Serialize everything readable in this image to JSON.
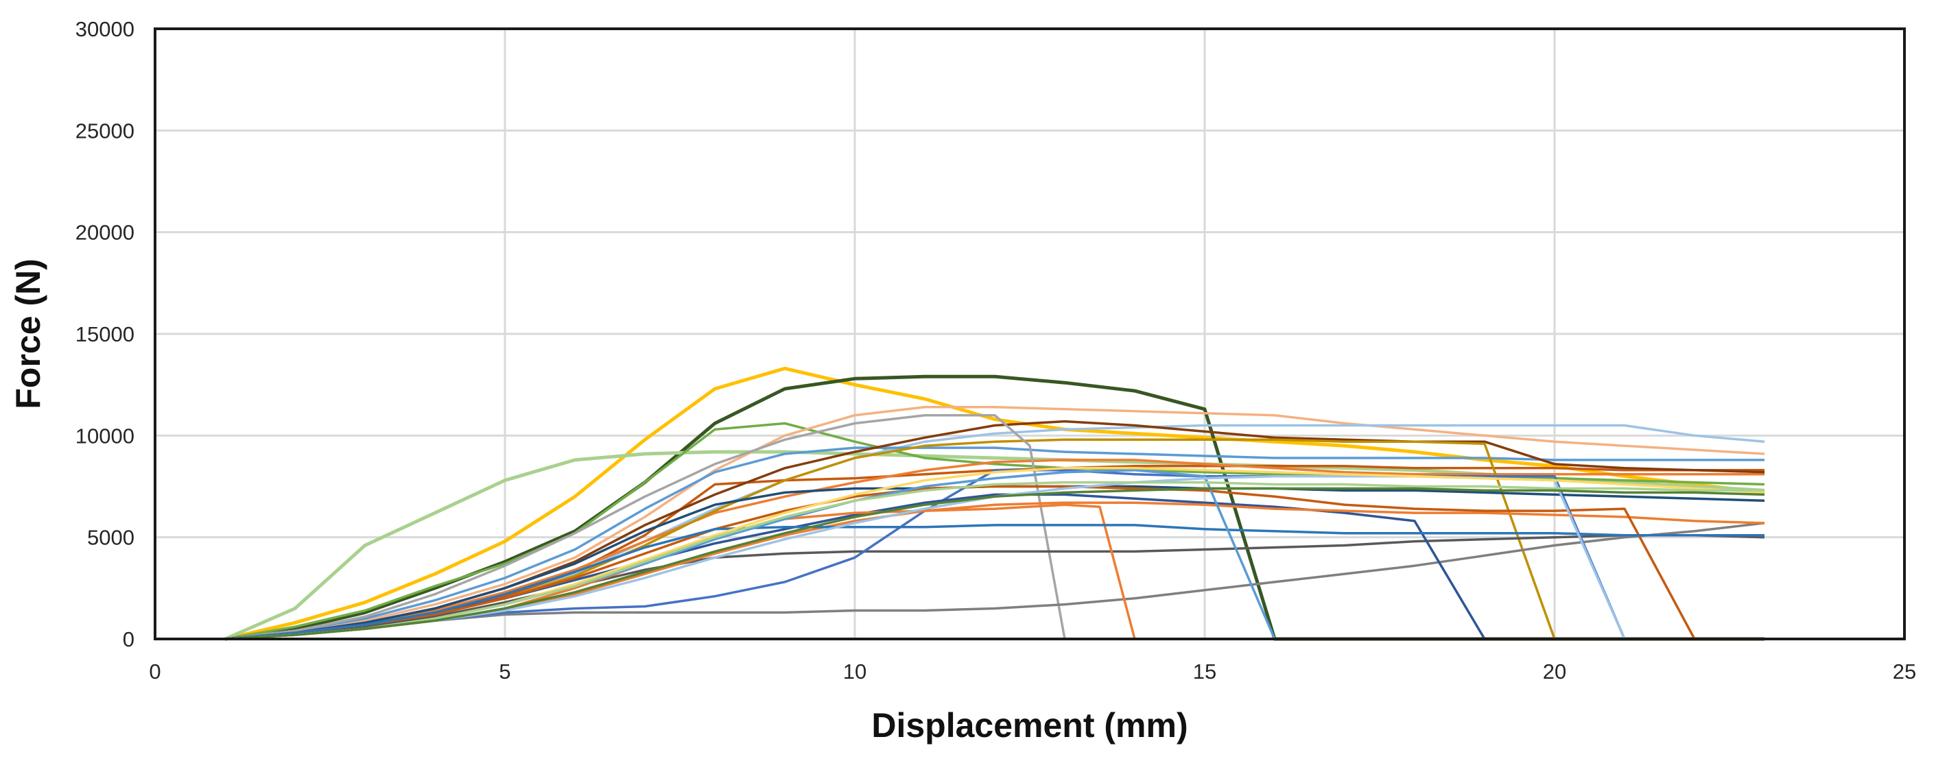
{
  "chart_data": {
    "type": "line",
    "title": "",
    "xlabel": "Displacement (mm)",
    "ylabel": "Force (N)",
    "xlim": [
      0,
      25
    ],
    "ylim": [
      0,
      30000
    ],
    "x_ticks": [
      "0",
      "5",
      "10",
      "15",
      "20",
      "25"
    ],
    "y_ticks": [
      "0",
      "5000",
      "10000",
      "15000",
      "20000",
      "25000",
      "30000"
    ],
    "grid": true,
    "legend": "none",
    "series": [
      {
        "color": "#FFC000",
        "x": [
          1,
          2,
          3,
          4,
          5,
          6,
          7,
          8,
          9,
          10,
          11,
          12,
          13,
          14,
          15,
          16,
          17,
          18,
          19,
          20,
          21,
          22,
          23
        ],
        "y": [
          0,
          800,
          1800,
          3200,
          4800,
          7000,
          9800,
          12300,
          13300,
          12500,
          11800,
          10800,
          10300,
          10100,
          9900,
          9700,
          9500,
          9200,
          8800,
          8500,
          8000,
          7600,
          7200
        ]
      },
      {
        "color": "#385723",
        "x": [
          1,
          2,
          3,
          4,
          5,
          6,
          7,
          8,
          9,
          10,
          11,
          12,
          13,
          14,
          15,
          16,
          16.1,
          23
        ],
        "y": [
          0,
          500,
          1300,
          2500,
          3800,
          5300,
          7700,
          10600,
          12300,
          12800,
          12900,
          12900,
          12600,
          12200,
          11300,
          0,
          0,
          0
        ]
      },
      {
        "color": "#A9D18E",
        "x": [
          1,
          2,
          3,
          4,
          5,
          6,
          7,
          8,
          9,
          10,
          11,
          12,
          13,
          14,
          15,
          16,
          17,
          18,
          19,
          20,
          21,
          22,
          23
        ],
        "y": [
          0,
          1500,
          4600,
          6200,
          7800,
          8800,
          9100,
          9200,
          9200,
          9100,
          9000,
          8900,
          8800,
          8700,
          8600,
          8500,
          8400,
          8300,
          8100,
          7900,
          7700,
          7500,
          7300
        ]
      },
      {
        "color": "#70AD47",
        "x": [
          1,
          2,
          3,
          4,
          5,
          6,
          7,
          8,
          9,
          10,
          11,
          12,
          13,
          14,
          15,
          16,
          17,
          18,
          19,
          20,
          21,
          22,
          23
        ],
        "y": [
          0,
          600,
          1400,
          2600,
          3700,
          5200,
          7700,
          10300,
          10600,
          9700,
          8900,
          8600,
          8400,
          8300,
          8200,
          8100,
          8100,
          8000,
          8000,
          7900,
          7800,
          7700,
          7600
        ]
      },
      {
        "color": "#F4B183",
        "x": [
          1,
          2,
          3,
          4,
          5,
          6,
          7,
          8,
          9,
          10,
          11,
          12,
          13,
          14,
          15,
          16,
          17,
          18,
          19,
          20,
          21,
          22,
          23
        ],
        "y": [
          0,
          400,
          900,
          1700,
          2700,
          4000,
          6000,
          8300,
          10000,
          11000,
          11400,
          11400,
          11300,
          11200,
          11100,
          11000,
          10600,
          10300,
          10000,
          9700,
          9500,
          9300,
          9100
        ]
      },
      {
        "color": "#9DC3E6",
        "x": [
          1,
          2,
          3,
          4,
          5,
          6,
          7,
          8,
          9,
          10,
          11,
          12,
          13,
          14,
          15,
          16,
          17,
          18,
          19,
          20,
          21,
          22,
          23
        ],
        "y": [
          0,
          300,
          700,
          1300,
          2100,
          3200,
          4800,
          6400,
          7800,
          8900,
          9700,
          10100,
          10300,
          10400,
          10500,
          10500,
          10500,
          10500,
          10500,
          10500,
          10500,
          10000,
          9700
        ]
      },
      {
        "color": "#5B9BD5",
        "x": [
          1,
          2,
          3,
          4,
          5,
          6,
          7,
          8,
          9,
          10,
          11,
          12,
          13,
          14,
          15,
          16,
          17,
          18,
          19,
          20,
          21,
          22,
          23
        ],
        "y": [
          0,
          400,
          1000,
          1900,
          3000,
          4400,
          6400,
          8200,
          9100,
          9400,
          9400,
          9400,
          9200,
          9100,
          9000,
          8900,
          8900,
          8900,
          8900,
          8800,
          8800,
          8800,
          8800
        ]
      },
      {
        "color": "#C55A11",
        "x": [
          1,
          2,
          3,
          4,
          5,
          6,
          7,
          8,
          9,
          10,
          11,
          12,
          13,
          14,
          15,
          16,
          17,
          18,
          19,
          20,
          21,
          22,
          23
        ],
        "y": [
          0,
          300,
          700,
          1300,
          2100,
          3300,
          5100,
          7600,
          7800,
          7900,
          8100,
          8300,
          8400,
          8500,
          8500,
          8500,
          8500,
          8400,
          8400,
          8400,
          8300,
          8300,
          8300
        ]
      },
      {
        "color": "#ED7D31",
        "x": [
          1,
          2,
          3,
          4,
          5,
          6,
          7,
          8,
          9,
          10,
          11,
          12,
          13,
          14,
          15,
          16,
          17,
          18,
          19,
          20,
          21,
          22,
          23
        ],
        "y": [
          0,
          300,
          800,
          1400,
          2300,
          3400,
          4800,
          6200,
          7000,
          7700,
          8300,
          8700,
          8800,
          8800,
          8600,
          8400,
          8200,
          8100,
          8100,
          8100,
          8100,
          8100,
          8100
        ]
      },
      {
        "color": "#843C0C",
        "x": [
          1,
          2,
          3,
          4,
          5,
          6,
          7,
          8,
          9,
          10,
          11,
          12,
          13,
          14,
          15,
          16,
          17,
          18,
          19,
          20,
          21,
          22,
          23
        ],
        "y": [
          0,
          300,
          800,
          1500,
          2500,
          3800,
          5600,
          7100,
          8400,
          9200,
          9900,
          10500,
          10700,
          10500,
          10200,
          9900,
          9800,
          9700,
          9700,
          8600,
          8400,
          8300,
          8200
        ]
      },
      {
        "color": "#BF9000",
        "x": [
          1,
          2,
          3,
          4,
          5,
          6,
          7,
          8,
          9,
          10,
          11,
          12,
          13,
          14,
          15,
          16,
          17,
          18,
          19,
          20,
          20.1,
          23
        ],
        "y": [
          0,
          200,
          600,
          1200,
          2000,
          3100,
          4600,
          6300,
          7800,
          8900,
          9500,
          9700,
          9800,
          9800,
          9800,
          9800,
          9700,
          9700,
          9600,
          0,
          0,
          0
        ]
      },
      {
        "color": "#A5A5A5",
        "x": [
          1,
          2,
          3,
          4,
          5,
          6,
          7,
          8,
          9,
          10,
          11,
          12,
          12.5,
          13,
          13.1,
          23
        ],
        "y": [
          0,
          400,
          1100,
          2200,
          3600,
          5200,
          7000,
          8600,
          9800,
          10600,
          11000,
          11000,
          9500,
          0,
          0,
          0
        ]
      },
      {
        "color": "#7F7F7F",
        "x": [
          1,
          2,
          3,
          4,
          5,
          6,
          7,
          8,
          9,
          10,
          11,
          12,
          13,
          14,
          15,
          16,
          17,
          18,
          19,
          20,
          21,
          22,
          23
        ],
        "y": [
          0,
          200,
          500,
          900,
          1200,
          1300,
          1300,
          1300,
          1300,
          1400,
          1400,
          1500,
          1700,
          2000,
          2400,
          2800,
          3200,
          3600,
          4100,
          4600,
          5000,
          5300,
          5700
        ]
      },
      {
        "color": "#595959",
        "x": [
          1,
          2,
          3,
          4,
          5,
          6,
          7,
          8,
          9,
          10,
          11,
          12,
          13,
          14,
          15,
          16,
          17,
          18,
          19,
          20,
          21,
          22,
          23
        ],
        "y": [
          0,
          200,
          600,
          1100,
          1800,
          2600,
          3400,
          4000,
          4200,
          4300,
          4300,
          4300,
          4300,
          4300,
          4400,
          4500,
          4600,
          4800,
          4900,
          5000,
          5100,
          5100,
          5000
        ]
      },
      {
        "color": "#4472C4",
        "x": [
          1,
          2,
          3,
          4,
          5,
          6,
          7,
          8,
          9,
          10,
          11,
          12,
          13,
          14,
          15,
          16,
          17,
          18,
          19,
          20,
          21,
          21.1,
          23
        ],
        "y": [
          0,
          200,
          500,
          900,
          1300,
          1500,
          1600,
          2100,
          2800,
          4000,
          6300,
          8300,
          8300,
          8100,
          8000,
          8000,
          8000,
          8000,
          8000,
          8000,
          0,
          0,
          0
        ]
      },
      {
        "color": "#2F5597",
        "x": [
          1,
          2,
          3,
          4,
          5,
          6,
          7,
          8,
          9,
          10,
          11,
          12,
          13,
          14,
          15,
          16,
          17,
          18,
          19,
          19.1,
          23
        ],
        "y": [
          0,
          300,
          700,
          1300,
          2000,
          2900,
          3800,
          4700,
          5400,
          6100,
          6700,
          7100,
          7100,
          6900,
          6700,
          6500,
          6200,
          5800,
          0,
          0,
          0
        ]
      },
      {
        "color": "#1F4E79",
        "x": [
          1,
          2,
          3,
          4,
          5,
          6,
          7,
          8,
          9,
          10,
          11,
          12,
          13,
          14,
          15,
          16,
          17,
          18,
          19,
          20,
          21,
          22,
          23
        ],
        "y": [
          0,
          300,
          800,
          1500,
          2500,
          3700,
          5300,
          6600,
          7200,
          7400,
          7400,
          7500,
          7500,
          7500,
          7400,
          7400,
          7300,
          7300,
          7200,
          7100,
          7000,
          6900,
          6800
        ]
      },
      {
        "color": "#ED7D31",
        "x": [
          1,
          2,
          3,
          4,
          5,
          6,
          7,
          8,
          9,
          10,
          11,
          12,
          13,
          13.5,
          14,
          14.1,
          23
        ],
        "y": [
          0,
          200,
          500,
          900,
          1500,
          2500,
          3700,
          5000,
          5900,
          6200,
          6300,
          6400,
          6600,
          6500,
          0,
          0,
          0
        ]
      },
      {
        "color": "#ED7D31",
        "x": [
          1,
          2,
          3,
          4,
          5,
          6,
          7,
          8,
          9,
          10,
          11,
          12,
          13,
          14,
          15,
          16,
          17,
          18,
          19,
          20,
          21,
          22,
          23
        ],
        "y": [
          0,
          200,
          500,
          900,
          1400,
          2200,
          3200,
          4200,
          5100,
          5800,
          6300,
          6600,
          6700,
          6700,
          6600,
          6400,
          6300,
          6200,
          6200,
          6100,
          6000,
          5800,
          5700
        ]
      },
      {
        "color": "#C55A11",
        "x": [
          1,
          2,
          3,
          4,
          5,
          6,
          7,
          8,
          9,
          10,
          11,
          12,
          13,
          14,
          15,
          16,
          17,
          18,
          19,
          20,
          21,
          22,
          22.1,
          23
        ],
        "y": [
          0,
          300,
          700,
          1200,
          2000,
          3000,
          4200,
          5400,
          6300,
          7000,
          7400,
          7500,
          7500,
          7400,
          7300,
          7000,
          6600,
          6400,
          6300,
          6300,
          6400,
          0,
          0,
          0
        ]
      },
      {
        "color": "#2E75B6",
        "x": [
          1,
          2,
          3,
          4,
          5,
          6,
          7,
          8,
          9,
          10,
          11,
          12,
          13,
          14,
          15,
          16,
          17,
          18,
          19,
          20,
          21,
          22,
          23
        ],
        "y": [
          0,
          300,
          700,
          1300,
          2200,
          3300,
          4500,
          5400,
          5500,
          5500,
          5500,
          5600,
          5600,
          5600,
          5400,
          5300,
          5200,
          5200,
          5200,
          5200,
          5100,
          5100,
          5100
        ]
      },
      {
        "color": "#5B9BD5",
        "x": [
          1,
          2,
          3,
          4,
          5,
          6,
          7,
          8,
          9,
          10,
          11,
          12,
          13,
          14,
          15,
          16,
          16.1,
          23
        ],
        "y": [
          0,
          200,
          500,
          1000,
          1700,
          2600,
          3700,
          4900,
          5900,
          6800,
          7500,
          7900,
          8200,
          8300,
          8000,
          0,
          0,
          0
        ]
      },
      {
        "color": "#9DC3E6",
        "x": [
          1,
          2,
          3,
          4,
          5,
          6,
          7,
          8,
          9,
          10,
          11,
          12,
          13,
          14,
          15,
          16,
          17,
          18,
          19,
          20,
          21,
          21.1,
          23
        ],
        "y": [
          0,
          200,
          500,
          900,
          1400,
          2100,
          3000,
          4000,
          4900,
          5700,
          6400,
          7000,
          7400,
          7700,
          7900,
          8000,
          8000,
          8000,
          7900,
          7800,
          0,
          0,
          0
        ]
      },
      {
        "color": "#FFD966",
        "x": [
          1,
          2,
          3,
          4,
          5,
          6,
          7,
          8,
          9,
          10,
          11,
          12,
          13,
          14,
          15,
          16,
          17,
          18,
          19,
          20,
          21,
          22,
          23
        ],
        "y": [
          0,
          200,
          500,
          1000,
          1700,
          2700,
          3900,
          5100,
          6200,
          7100,
          7800,
          8200,
          8400,
          8400,
          8300,
          8200,
          8100,
          8000,
          7900,
          7800,
          7600,
          7400,
          7200
        ]
      },
      {
        "color": "#A9D18E",
        "x": [
          1,
          2,
          3,
          4,
          5,
          6,
          7,
          8,
          9,
          10,
          11,
          12,
          13,
          14,
          15,
          16,
          17,
          18,
          19,
          20,
          21,
          22,
          23
        ],
        "y": [
          0,
          200,
          500,
          1000,
          1700,
          2600,
          3800,
          5000,
          6000,
          6800,
          7300,
          7600,
          7700,
          7700,
          7700,
          7600,
          7600,
          7500,
          7500,
          7400,
          7400,
          7300,
          7300
        ]
      },
      {
        "color": "#548235",
        "x": [
          1,
          2,
          3,
          4,
          5,
          6,
          7,
          8,
          9,
          10,
          11,
          12,
          13,
          14,
          15,
          16,
          17,
          18,
          19,
          20,
          21,
          22,
          23
        ],
        "y": [
          0,
          200,
          500,
          900,
          1500,
          2300,
          3300,
          4300,
          5200,
          6000,
          6600,
          7000,
          7200,
          7300,
          7400,
          7400,
          7400,
          7400,
          7300,
          7300,
          7200,
          7200,
          7100
        ]
      }
    ]
  }
}
